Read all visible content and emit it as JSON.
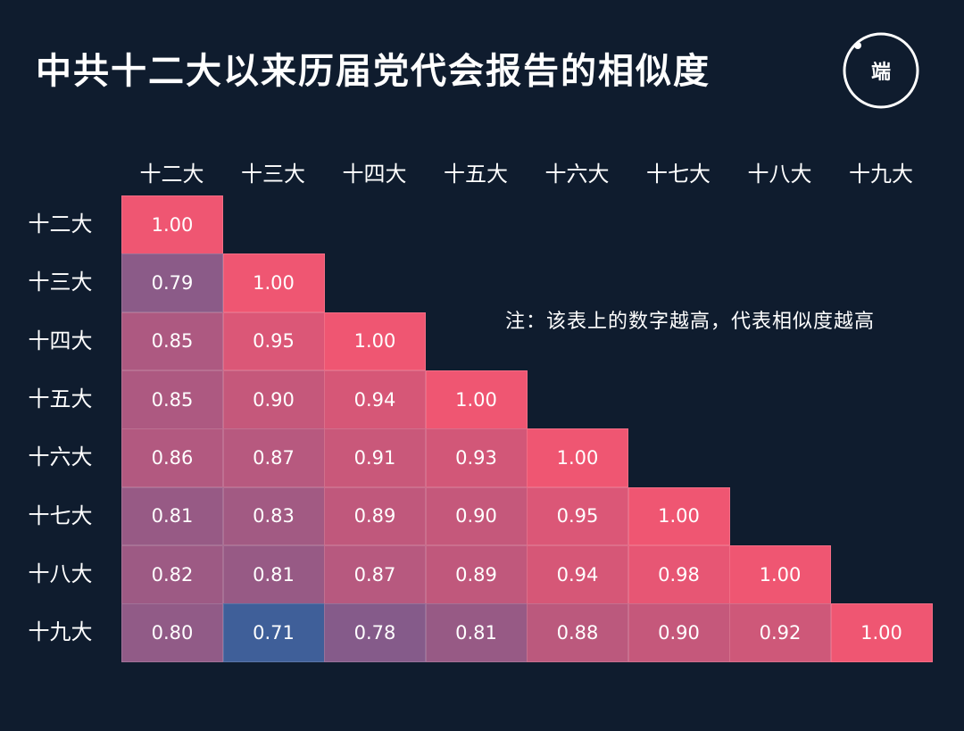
{
  "header": {
    "title": "中共十二大以来历届党代会报告的相似度",
    "logo_text": "端"
  },
  "note": "注：该表上的数字越高，代表相似度越高",
  "colors": {
    "background": "#0f1c2e",
    "high": "#ef5672",
    "low": "#3f5f99"
  },
  "chart_data": {
    "type": "heatmap",
    "title": "中共十二大以来历届党代会报告的相似度",
    "x_labels": [
      "十二大",
      "十三大",
      "十四大",
      "十五大",
      "十六大",
      "十七大",
      "十八大",
      "十九大"
    ],
    "y_labels": [
      "十二大",
      "十三大",
      "十四大",
      "十五大",
      "十六大",
      "十七大",
      "十八大",
      "十九大"
    ],
    "matrix": [
      [
        1.0
      ],
      [
        0.79,
        1.0
      ],
      [
        0.85,
        0.95,
        1.0
      ],
      [
        0.85,
        0.9,
        0.94,
        1.0
      ],
      [
        0.86,
        0.87,
        0.91,
        0.93,
        1.0
      ],
      [
        0.81,
        0.83,
        0.89,
        0.9,
        0.95,
        1.0
      ],
      [
        0.82,
        0.81,
        0.87,
        0.89,
        0.94,
        0.98,
        1.0
      ],
      [
        0.8,
        0.71,
        0.78,
        0.81,
        0.88,
        0.9,
        0.92,
        1.0
      ]
    ],
    "value_labels": [
      [
        "1.00"
      ],
      [
        "0.79",
        "1.00"
      ],
      [
        "0.85",
        "0.95",
        "1.00"
      ],
      [
        "0.85",
        "0.90",
        "0.94",
        "1.00"
      ],
      [
        "0.86",
        "0.87",
        "0.91",
        "0.93",
        "1.00"
      ],
      [
        "0.81",
        "0.83",
        "0.89",
        "0.90",
        "0.95",
        "1.00"
      ],
      [
        "0.82",
        "0.81",
        "0.87",
        "0.89",
        "0.94",
        "0.98",
        "1.00"
      ],
      [
        "0.80",
        "0.71",
        "0.78",
        "0.81",
        "0.88",
        "0.90",
        "0.92",
        "1.00"
      ]
    ],
    "value_range": [
      0.71,
      1.0
    ],
    "layout": "lower-triangular"
  }
}
